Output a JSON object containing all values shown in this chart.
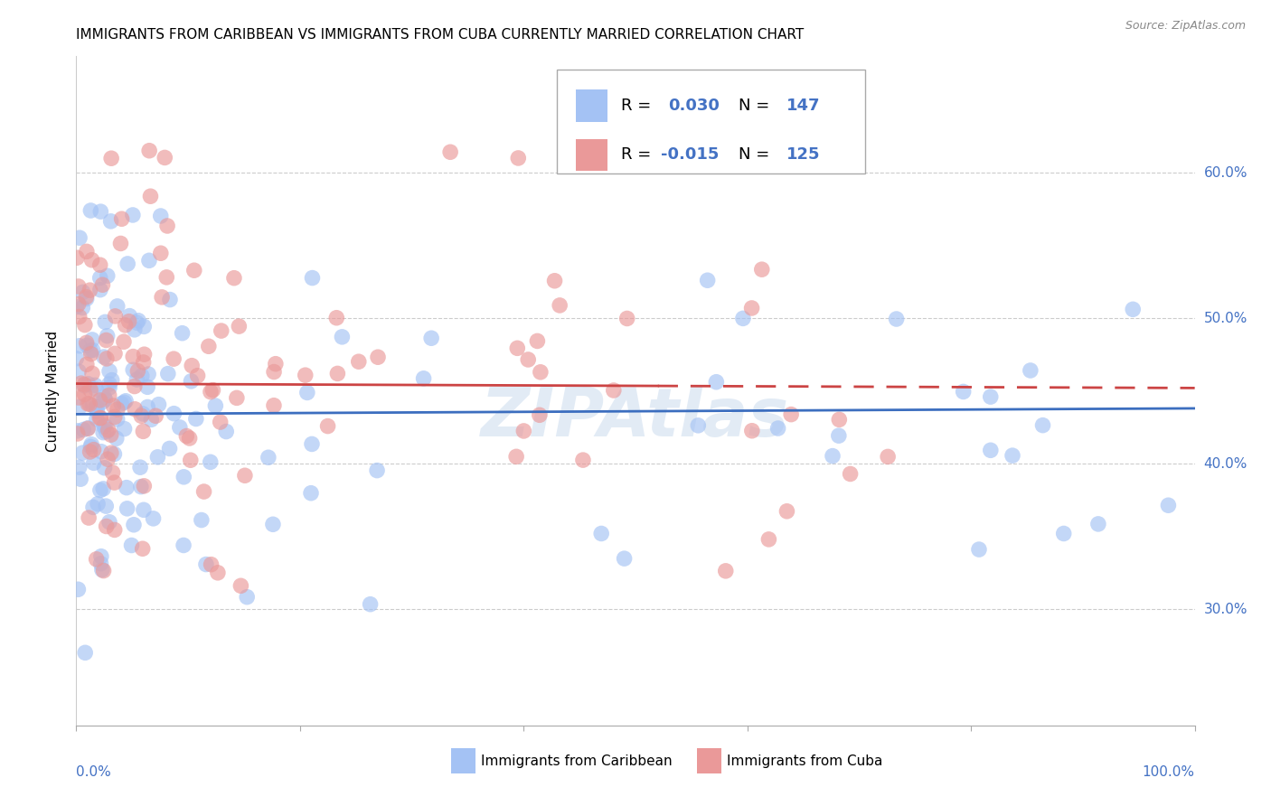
{
  "title": "IMMIGRANTS FROM CARIBBEAN VS IMMIGRANTS FROM CUBA CURRENTLY MARRIED CORRELATION CHART",
  "source": "Source: ZipAtlas.com",
  "ylabel": "Currently Married",
  "ytick_labels": [
    "30.0%",
    "40.0%",
    "50.0%",
    "60.0%"
  ],
  "ytick_values": [
    0.3,
    0.4,
    0.5,
    0.6
  ],
  "blue_color": "#a4c2f4",
  "pink_color": "#ea9999",
  "blue_line_color": "#3c6ebf",
  "pink_line_color": "#cc4444",
  "R1": 0.03,
  "N1": 147,
  "R2": -0.015,
  "N2": 125,
  "xlim": [
    0.0,
    1.0
  ],
  "ylim": [
    0.22,
    0.68
  ],
  "watermark": "ZIPAtlas",
  "legend_label1": "Immigrants from Caribbean",
  "legend_label2": "Immigrants from Cuba",
  "blue_line_intercept": 0.434,
  "blue_line_slope": 0.004,
  "pink_line_intercept": 0.455,
  "pink_line_slope": -0.003
}
